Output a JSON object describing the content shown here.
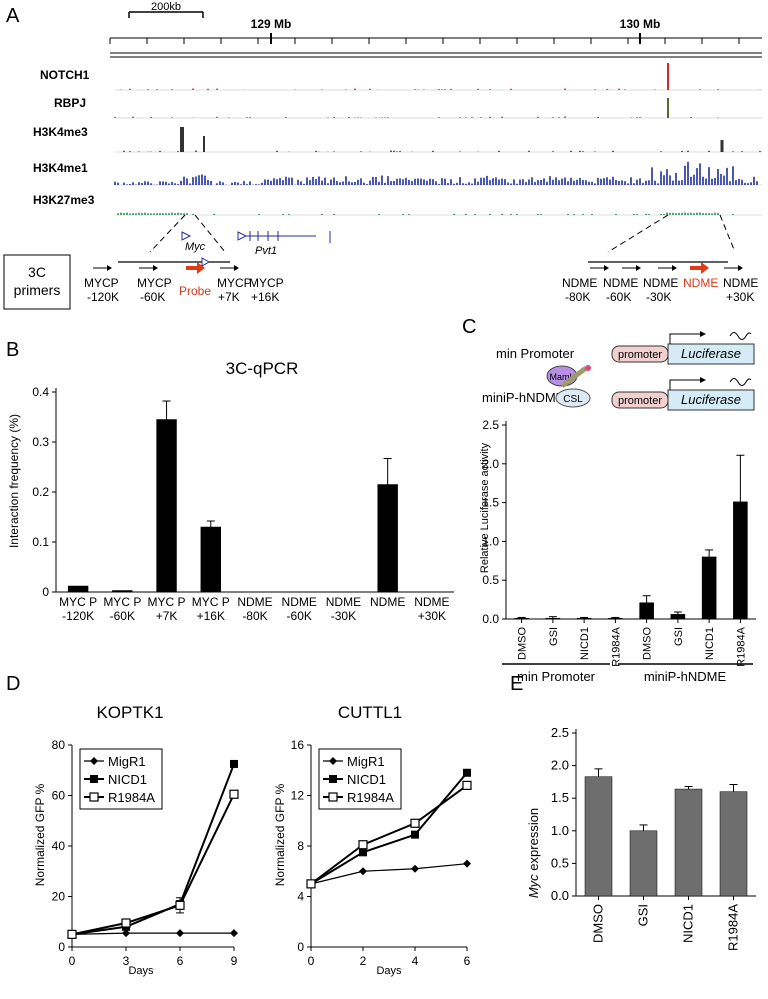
{
  "panels": {
    "A": {
      "letter": "A",
      "scalebar": "200kb",
      "coords": [
        "129 Mb",
        "130 Mb"
      ],
      "tracks": [
        {
          "name": "NOTCH1",
          "color": "#d62728"
        },
        {
          "name": "RBPJ",
          "color": "#556b2f"
        },
        {
          "name": "H3K4me3",
          "color": "#333333"
        },
        {
          "name": "H3K4me1",
          "color": "#1f2fa0"
        },
        {
          "name": "H3K27me3",
          "color": "#2e8b57"
        }
      ],
      "genes": [
        "Myc",
        "Pvt1"
      ],
      "box_label_1": "3C",
      "box_label_2": "primers",
      "left_primers": [
        {
          "l1": "MYCP",
          "l2": "-120K"
        },
        {
          "l1": "MYCP",
          "l2": "-60K"
        },
        {
          "l1": "MYCP",
          "l2": "+7K"
        },
        {
          "l1": "MYCP",
          "l2": "+16K"
        }
      ],
      "probe": "Probe",
      "right_primers": [
        {
          "l1": "NDME",
          "l2": "-80K"
        },
        {
          "l1": "NDME",
          "l2": "-60K"
        },
        {
          "l1": "NDME",
          "l2": "-30K"
        },
        {
          "l1": "NDME",
          "l2": ""
        },
        {
          "l1": "NDME",
          "l2": "+30K"
        }
      ]
    },
    "B": {
      "letter": "B"
    },
    "C": {
      "letter": "C",
      "construct1": "min Promoter",
      "construct2": "miniP-hNDME",
      "promoter": "promoter",
      "luciferase": "Luciferase",
      "maml": "MamL",
      "csl": "CSL",
      "group1": "min Promoter",
      "group2": "miniP-hNDME"
    },
    "D": {
      "letter": "D"
    },
    "E": {
      "letter": "E"
    }
  },
  "chart_data": [
    {
      "type": "bar",
      "title": "3C-qPCR",
      "ylabel": "Interaction frequency (%)",
      "xlabel": "",
      "ylim": [
        0,
        0.4
      ],
      "yticks": [
        0,
        0.1,
        0.2,
        0.3,
        0.4
      ],
      "ytick_labels": [
        "0",
        "0.1",
        "0.2",
        "0.3",
        "0.4"
      ],
      "categories": [
        {
          "l1": "MYC P",
          "l2": "-120K"
        },
        {
          "l1": "MYC P",
          "l2": "-60K"
        },
        {
          "l1": "MYC P",
          "l2": "+7K"
        },
        {
          "l1": "MYC P",
          "l2": "+16K"
        },
        {
          "l1": "NDME",
          "l2": "-80K"
        },
        {
          "l1": "NDME",
          "l2": "-60K"
        },
        {
          "l1": "NDME",
          "l2": "-30K"
        },
        {
          "l1": "NDME",
          "l2": ""
        },
        {
          "l1": "NDME",
          "l2": "+30K"
        }
      ],
      "values": [
        0.012,
        0.003,
        0.345,
        0.13,
        0,
        0,
        0,
        0.215,
        0
      ],
      "errors": [
        0,
        0,
        0.037,
        0.012,
        0,
        0,
        0,
        0.052,
        0
      ]
    },
    {
      "type": "bar",
      "title": "",
      "ylabel": "Relative Luciferase activity",
      "xlabel": "",
      "ylim": [
        0,
        2.5
      ],
      "yticks": [
        0,
        0.5,
        1,
        1.5,
        2,
        2.5
      ],
      "ytick_labels": [
        "0.0",
        "0.5",
        "1.0",
        "1.5",
        "2.0",
        "2.5"
      ],
      "categories": [
        "DMSO",
        "GSI",
        "NICD1",
        "R1984A",
        "DMSO",
        "GSI",
        "NICD1",
        "R1984A"
      ],
      "values": [
        0.01,
        0.01,
        0.01,
        0.01,
        0.21,
        0.06,
        0.8,
        1.51
      ],
      "errors": [
        0.01,
        0.02,
        0.01,
        0.01,
        0.09,
        0.03,
        0.09,
        0.6
      ]
    },
    {
      "type": "line",
      "title": "KOPTK1",
      "xlabel": "Days",
      "ylabel": "Normalized GFP %",
      "xlim": [
        0,
        9
      ],
      "ylim": [
        0,
        80
      ],
      "xticks": [
        0,
        3,
        6,
        9
      ],
      "yticks": [
        0,
        20,
        40,
        60,
        80
      ],
      "series": [
        {
          "name": "MigR1",
          "x": [
            0,
            3,
            6,
            9
          ],
          "y": [
            5,
            5.5,
            5.5,
            5.5
          ],
          "marker": "diamond"
        },
        {
          "name": "NICD1",
          "x": [
            0,
            3,
            6,
            9
          ],
          "y": [
            5,
            8,
            17,
            72.5
          ],
          "marker": "filled-square"
        },
        {
          "name": "R1984A",
          "x": [
            0,
            3,
            6,
            9
          ],
          "y": [
            5,
            9.5,
            16.5,
            60.5
          ],
          "marker": "open-square"
        }
      ],
      "errors": {
        "x": 6,
        "y": 16.5,
        "err": 3
      }
    },
    {
      "type": "line",
      "title": "CUTTL1",
      "xlabel": "Days",
      "ylabel": "Normalized GFP %",
      "xlim": [
        0,
        6
      ],
      "ylim": [
        0,
        16
      ],
      "xticks": [
        0,
        2,
        4,
        6
      ],
      "yticks": [
        0,
        4,
        8,
        12,
        16
      ],
      "series": [
        {
          "name": "MigR1",
          "x": [
            0,
            2,
            4,
            6
          ],
          "y": [
            5,
            6,
            6.2,
            6.6
          ],
          "marker": "diamond"
        },
        {
          "name": "NICD1",
          "x": [
            0,
            2,
            4,
            6
          ],
          "y": [
            5,
            7.5,
            8.9,
            13.8
          ],
          "marker": "filled-square"
        },
        {
          "name": "R1984A",
          "x": [
            0,
            2,
            4,
            6
          ],
          "y": [
            5,
            8.1,
            9.8,
            12.8
          ],
          "marker": "open-square"
        }
      ]
    },
    {
      "type": "bar",
      "title": "",
      "ylabel_italic": "Myc",
      "ylabel_rest": " expression",
      "xlabel": "",
      "ylim": [
        0,
        2.5
      ],
      "yticks": [
        0,
        0.5,
        1,
        1.5,
        2,
        2.5
      ],
      "ytick_labels": [
        "0.0",
        "0.5",
        "1.0",
        "1.5",
        "2.0",
        "2.5"
      ],
      "categories": [
        "DMSO",
        "GSI",
        "NICD1",
        "R1984A"
      ],
      "values": [
        1.83,
        1.0,
        1.64,
        1.6
      ],
      "errors": [
        0.12,
        0.09,
        0.04,
        0.11
      ],
      "bar_color": "#6e6e6e"
    }
  ]
}
